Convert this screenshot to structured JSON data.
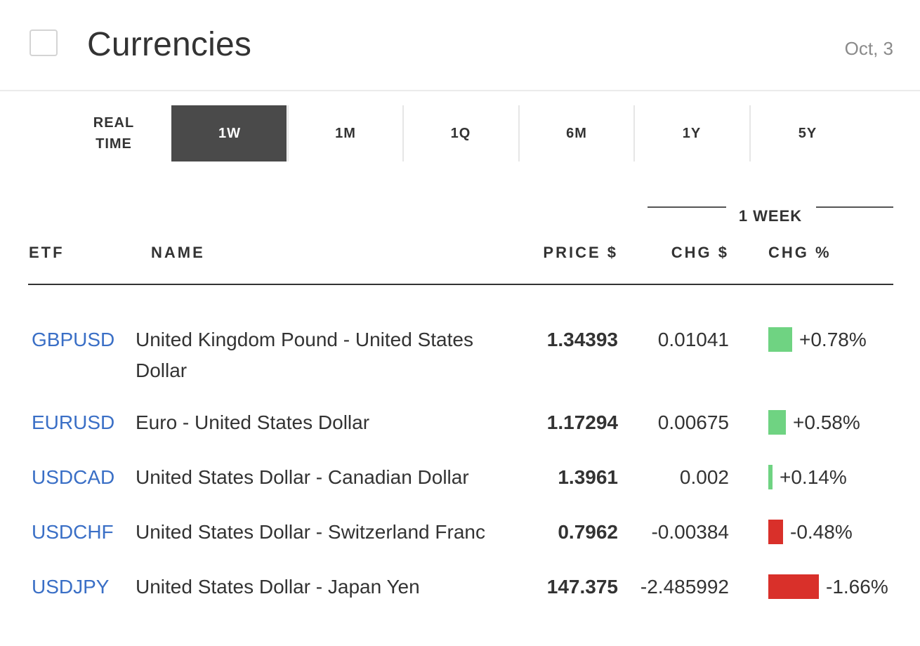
{
  "header": {
    "title": "Currencies",
    "date": "Oct, 3"
  },
  "tabs": [
    {
      "label": "REAL TIME",
      "active": false
    },
    {
      "label": "1W",
      "active": true
    },
    {
      "label": "1M",
      "active": false
    },
    {
      "label": "1Q",
      "active": false
    },
    {
      "label": "6M",
      "active": false
    },
    {
      "label": "1Y",
      "active": false
    },
    {
      "label": "5Y",
      "active": false
    }
  ],
  "table": {
    "group_label": "1 WEEK",
    "columns": {
      "etf": "ETF",
      "name": "NAME",
      "price": "PRICE $",
      "chg": "CHG $",
      "chg_pct": "CHG %"
    },
    "rows": [
      {
        "symbol": "GBPUSD",
        "name": "United Kingdom Pound - United States Dollar",
        "price": "1.34393",
        "chg": "0.01041",
        "chg_pct": "+0.78%",
        "pct_value": 0.78
      },
      {
        "symbol": "EURUSD",
        "name": "Euro - United States Dollar",
        "price": "1.17294",
        "chg": "0.00675",
        "chg_pct": "+0.58%",
        "pct_value": 0.58
      },
      {
        "symbol": "USDCAD",
        "name": "United States Dollar - Canadian Dollar",
        "price": "1.3961",
        "chg": "0.002",
        "chg_pct": "+0.14%",
        "pct_value": 0.14
      },
      {
        "symbol": "USDCHF",
        "name": "United States Dollar - Switzerland Franc",
        "price": "0.7962",
        "chg": "-0.00384",
        "chg_pct": "-0.48%",
        "pct_value": -0.48
      },
      {
        "symbol": "USDJPY",
        "name": "United States Dollar - Japan Yen",
        "price": "147.375",
        "chg": "-2.485992",
        "chg_pct": "-1.66%",
        "pct_value": -1.66
      }
    ]
  },
  "colors": {
    "positive": "#6fd382",
    "negative": "#d9302a",
    "link": "#3a6fc6",
    "tab_active": "#4a4a4a"
  }
}
